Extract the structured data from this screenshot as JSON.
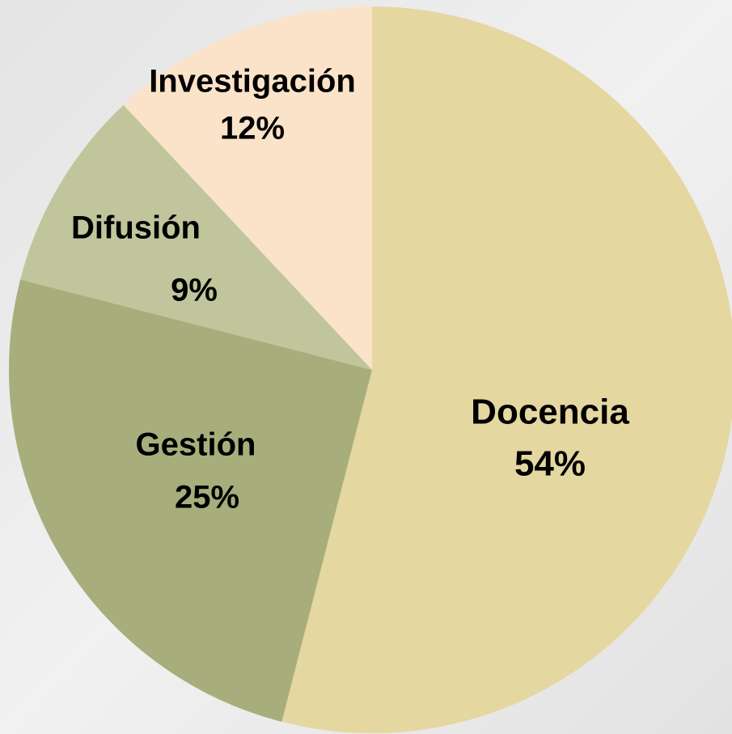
{
  "chart_data": {
    "type": "pie",
    "categories": [
      "Docencia",
      "Gestión",
      "Difusión",
      "Investigación"
    ],
    "values": [
      54,
      25,
      9,
      12
    ],
    "value_labels": [
      "54%",
      "25%",
      "9%",
      "12%"
    ],
    "colors": [
      "#e5d7a0",
      "#a8ae7b",
      "#c1c59b",
      "#fae3c8"
    ]
  }
}
